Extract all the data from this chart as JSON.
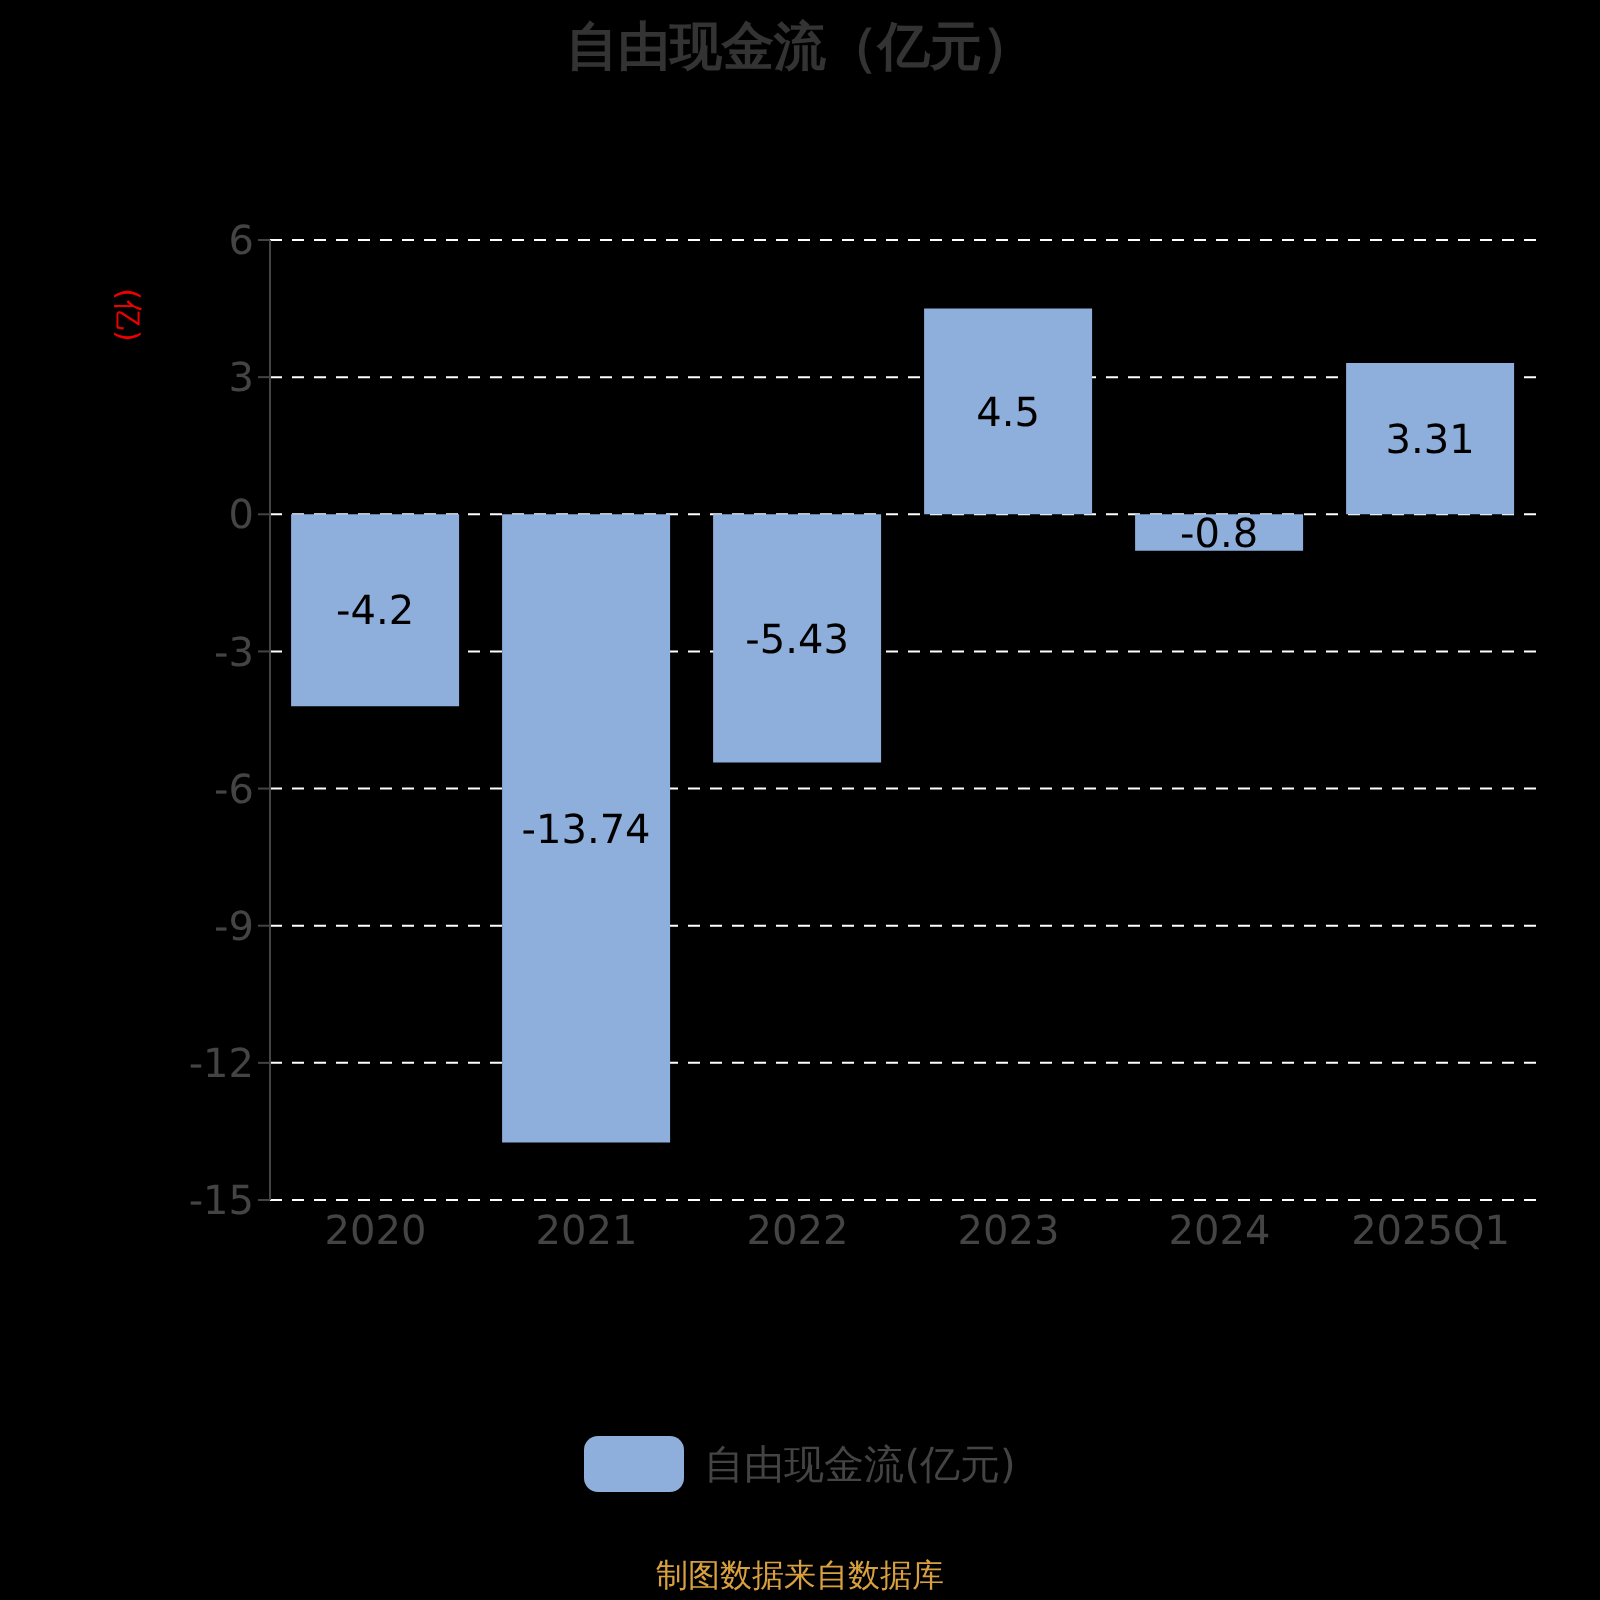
{
  "chart_data": {
    "type": "bar",
    "title": "自由现金流（亿元）",
    "ylabel": "(亿)",
    "categories": [
      "2020",
      "2021",
      "2022",
      "2023",
      "2024",
      "2025Q1"
    ],
    "series": [
      {
        "name": "自由现金流(亿元)",
        "color": "#8eaedb",
        "values": [
          -4.2,
          -13.74,
          -5.43,
          4.5,
          -0.8,
          3.31
        ]
      }
    ],
    "ylim": [
      -15,
      6
    ],
    "yticks": [
      -15,
      -12,
      -9,
      -6,
      -3,
      0,
      3,
      6
    ],
    "grid": "y",
    "legend": "bottom",
    "data_labels": true,
    "annotations": [
      "制图数据来自数据库"
    ]
  }
}
